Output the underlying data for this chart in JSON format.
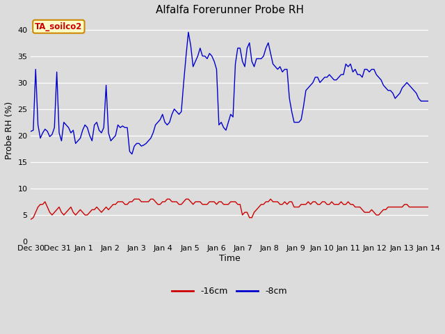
{
  "title": "Alfalfa Forerunner Probe RH",
  "ylabel": "Probe RH (%)",
  "xlabel": "Time",
  "ylim": [
    0,
    42
  ],
  "yticks": [
    0,
    5,
    10,
    15,
    20,
    25,
    30,
    35,
    40
  ],
  "bg_color": "#dcdcdc",
  "line_blue_color": "#0000cc",
  "line_red_color": "#cc0000",
  "legend_label_red": "-16cm",
  "legend_label_blue": "-8cm",
  "annotation_text": "TA_soilco2",
  "annotation_bg": "#ffffcc",
  "annotation_border": "#cc8800",
  "annotation_text_color": "#cc0000",
  "tick_labels": [
    "Dec 30",
    "Dec 31",
    "Jan 1",
    "Jan 2",
    "Jan 3",
    "Jan 4",
    "Jan 5",
    "Jan 6",
    "Jan 7",
    "Jan 8",
    "Jan 9",
    "Jan 10",
    "Jan 11",
    "Jan 12",
    "Jan 13",
    "Jan 14"
  ],
  "blue_data": [
    20.8,
    21.0,
    32.5,
    22.0,
    19.5,
    20.5,
    21.2,
    20.8,
    19.8,
    20.2,
    21.5,
    32.0,
    20.5,
    19.0,
    22.5,
    22.0,
    21.5,
    20.5,
    21.0,
    18.5,
    19.0,
    19.5,
    21.0,
    22.0,
    21.5,
    20.0,
    19.0,
    22.0,
    22.5,
    21.0,
    20.5,
    21.5,
    29.5,
    20.5,
    19.0,
    19.5,
    20.0,
    22.0,
    21.5,
    21.8,
    21.5,
    21.5,
    17.0,
    16.5,
    18.0,
    18.5,
    18.5,
    18.0,
    18.2,
    18.5,
    19.0,
    19.5,
    20.5,
    22.0,
    22.5,
    23.0,
    24.0,
    22.5,
    22.0,
    22.5,
    24.0,
    25.0,
    24.5,
    24.0,
    24.5,
    30.0,
    35.0,
    39.5,
    37.0,
    33.0,
    34.0,
    35.0,
    36.5,
    35.0,
    35.0,
    34.5,
    35.5,
    35.0,
    34.0,
    32.5,
    22.0,
    22.5,
    21.5,
    21.0,
    22.5,
    24.0,
    23.5,
    33.5,
    36.5,
    36.5,
    34.0,
    33.0,
    36.5,
    37.5,
    34.0,
    33.0,
    34.5,
    34.5,
    34.5,
    35.0,
    36.5,
    37.5,
    35.5,
    33.5,
    33.0,
    32.5,
    33.0,
    32.0,
    32.5,
    32.5,
    27.0,
    24.5,
    22.5,
    22.5,
    22.5,
    23.0,
    25.5,
    28.5,
    29.0,
    29.5,
    30.0,
    31.0,
    31.0,
    30.0,
    30.5,
    31.0,
    31.0,
    31.5,
    31.0,
    30.5,
    30.5,
    31.0,
    31.5,
    31.5,
    33.5,
    33.0,
    33.5,
    32.0,
    32.5,
    31.5,
    31.5,
    31.0,
    32.5,
    32.5,
    32.0,
    32.5,
    32.5,
    31.5,
    31.0,
    30.5,
    29.5,
    29.0,
    28.5,
    28.5,
    28.0,
    27.0,
    27.5,
    28.0,
    29.0,
    29.5,
    30.0,
    29.5,
    29.0,
    28.5,
    28.0,
    27.0,
    26.5,
    26.5,
    26.5,
    26.5
  ],
  "red_data": [
    4.2,
    4.5,
    5.5,
    6.5,
    7.0,
    7.0,
    7.5,
    6.5,
    5.5,
    5.0,
    5.5,
    6.0,
    6.5,
    5.5,
    5.0,
    5.5,
    6.0,
    6.5,
    5.5,
    5.0,
    5.5,
    6.0,
    5.5,
    5.0,
    5.0,
    5.5,
    6.0,
    6.0,
    6.5,
    6.0,
    5.5,
    6.0,
    6.5,
    6.0,
    6.5,
    7.0,
    7.0,
    7.5,
    7.5,
    7.5,
    7.0,
    7.0,
    7.5,
    7.5,
    8.0,
    8.0,
    8.0,
    7.5,
    7.5,
    7.5,
    7.5,
    8.0,
    8.0,
    7.5,
    7.0,
    7.0,
    7.5,
    7.5,
    8.0,
    8.0,
    7.5,
    7.5,
    7.5,
    7.0,
    7.0,
    7.5,
    8.0,
    8.0,
    7.5,
    7.0,
    7.5,
    7.5,
    7.5,
    7.0,
    7.0,
    7.0,
    7.5,
    7.5,
    7.5,
    7.0,
    7.5,
    7.5,
    7.0,
    7.0,
    7.0,
    7.5,
    7.5,
    7.5,
    7.0,
    7.0,
    5.0,
    5.5,
    5.5,
    4.5,
    4.5,
    5.5,
    6.0,
    6.5,
    7.0,
    7.0,
    7.5,
    7.5,
    8.0,
    7.5,
    7.5,
    7.5,
    7.0,
    7.0,
    7.5,
    7.0,
    7.5,
    7.5,
    6.5,
    6.5,
    6.5,
    7.0,
    7.0,
    7.0,
    7.5,
    7.0,
    7.5,
    7.5,
    7.0,
    7.0,
    7.5,
    7.5,
    7.0,
    7.0,
    7.5,
    7.0,
    7.0,
    7.0,
    7.5,
    7.0,
    7.0,
    7.5,
    7.0,
    7.0,
    6.5,
    6.5,
    6.5,
    6.0,
    5.5,
    5.5,
    5.5,
    6.0,
    5.5,
    5.0,
    5.0,
    5.5,
    6.0,
    6.0,
    6.5,
    6.5,
    6.5,
    6.5,
    6.5,
    6.5,
    6.5,
    7.0,
    7.0,
    6.5,
    6.5,
    6.5,
    6.5,
    6.5,
    6.5,
    6.5,
    6.5,
    6.5
  ]
}
